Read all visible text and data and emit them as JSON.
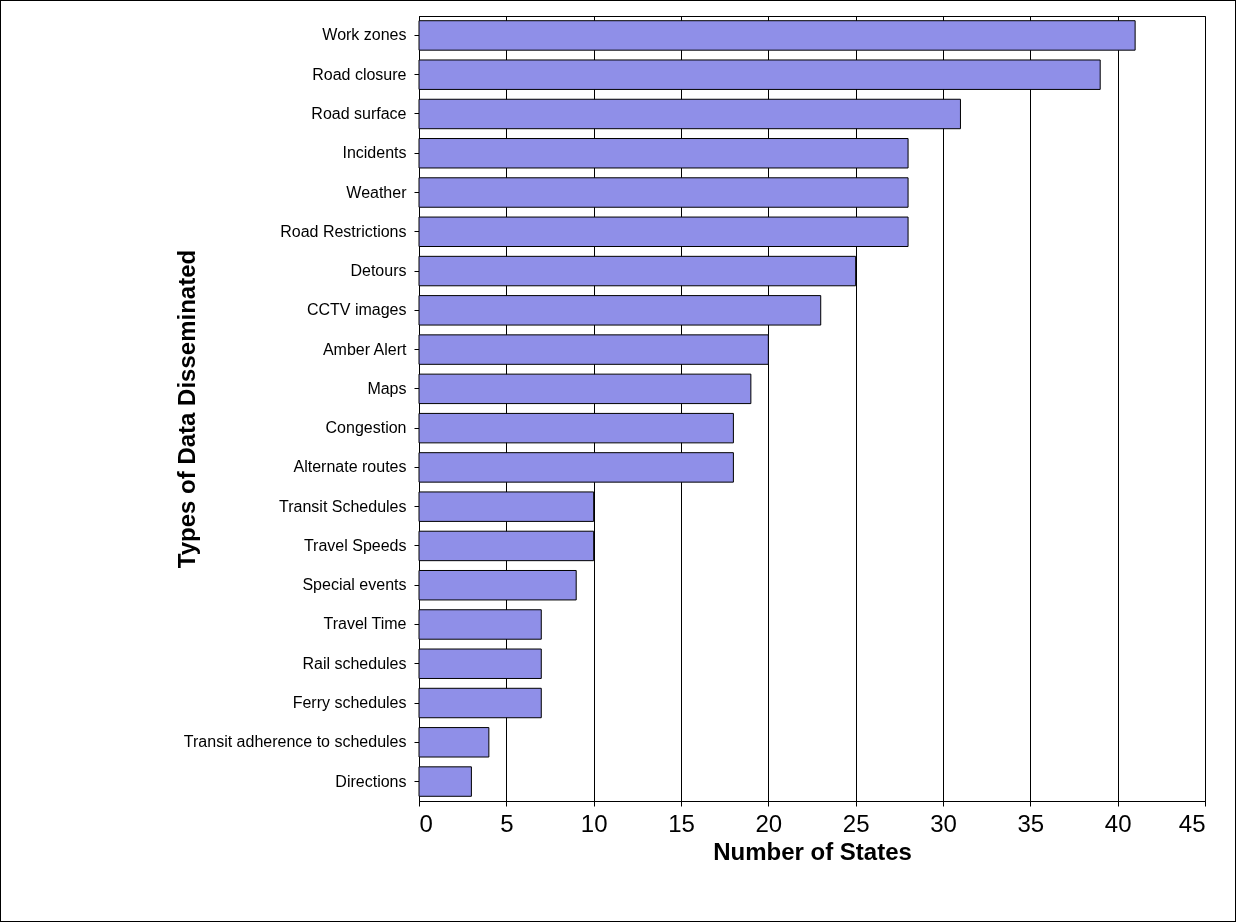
{
  "chart_data": {
    "type": "bar",
    "orientation": "horizontal",
    "xlabel": "Number of States",
    "ylabel": "Types of Data Disseminated",
    "categories": [
      "Work zones",
      "Road closure",
      "Road surface",
      "Incidents",
      "Weather",
      "Road Restrictions",
      "Detours",
      "CCTV images",
      "Amber Alert",
      "Maps",
      "Congestion",
      "Alternate routes",
      "Transit Schedules",
      "Travel Speeds",
      "Special events",
      "Travel Time",
      "Rail schedules",
      "Ferry schedules",
      "Transit adherence to schedules",
      "Directions"
    ],
    "values": [
      41,
      39,
      31,
      28,
      28,
      28,
      25,
      23,
      20,
      19,
      18,
      18,
      10,
      10,
      9,
      7,
      7,
      7,
      4,
      3
    ],
    "color": "#8f8fe8",
    "xlim": [
      0,
      45
    ],
    "xticks": [
      0,
      5,
      10,
      15,
      20,
      25,
      30,
      35,
      40,
      45
    ],
    "grid": "x"
  }
}
